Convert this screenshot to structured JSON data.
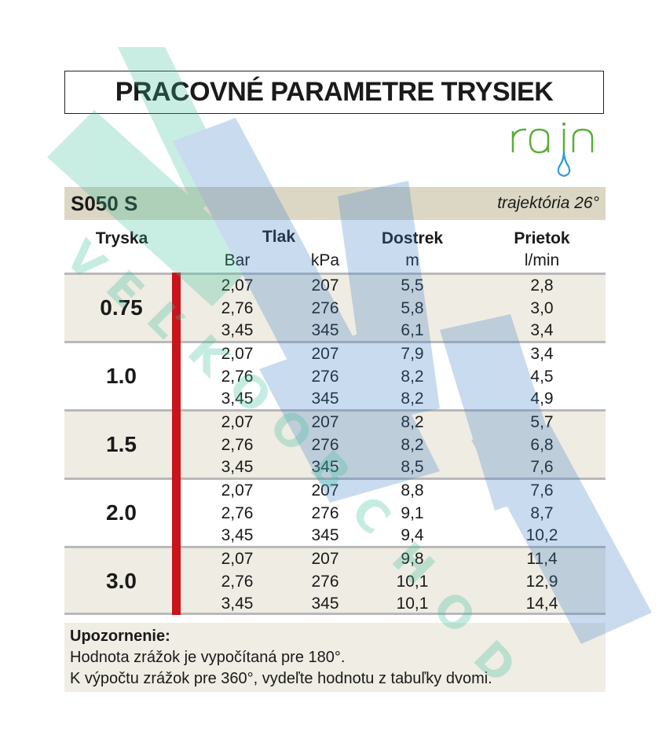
{
  "title": "PRACOVNÉ PARAMETRE TRYSIEK",
  "logo": {
    "text": "rain",
    "green": "#5aae3a",
    "blue": "#2f9ad6"
  },
  "model": {
    "name": "S050 S",
    "trajectory": "trajektória 26°"
  },
  "headers": {
    "nozzle": "Tryska",
    "pressure": "Tlak",
    "pressure_bar": "Bar",
    "pressure_kpa": "kPa",
    "distance": "Dostrek",
    "distance_unit": "m",
    "flow": "Prietok",
    "flow_unit": "l/min"
  },
  "groups": [
    {
      "nozzle": "0.75",
      "rows": [
        {
          "bar": "2,07",
          "kpa": "207",
          "distance": "5,5",
          "flow": "2,8"
        },
        {
          "bar": "2,76",
          "kpa": "276",
          "distance": "5,8",
          "flow": "3,0"
        },
        {
          "bar": "3,45",
          "kpa": "345",
          "distance": "6,1",
          "flow": "3,4"
        }
      ]
    },
    {
      "nozzle": "1.0",
      "rows": [
        {
          "bar": "2,07",
          "kpa": "207",
          "distance": "7,9",
          "flow": "3,4"
        },
        {
          "bar": "2,76",
          "kpa": "276",
          "distance": "8,2",
          "flow": "4,5"
        },
        {
          "bar": "3,45",
          "kpa": "345",
          "distance": "8,2",
          "flow": "4,9"
        }
      ]
    },
    {
      "nozzle": "1.5",
      "rows": [
        {
          "bar": "2,07",
          "kpa": "207",
          "distance": "8,2",
          "flow": "5,7"
        },
        {
          "bar": "2,76",
          "kpa": "276",
          "distance": "8,2",
          "flow": "6,8"
        },
        {
          "bar": "3,45",
          "kpa": "345",
          "distance": "8,5",
          "flow": "7,6"
        }
      ]
    },
    {
      "nozzle": "2.0",
      "rows": [
        {
          "bar": "2,07",
          "kpa": "207",
          "distance": "8,8",
          "flow": "7,6"
        },
        {
          "bar": "2,76",
          "kpa": "276",
          "distance": "9,1",
          "flow": "8,7"
        },
        {
          "bar": "3,45",
          "kpa": "345",
          "distance": "9,4",
          "flow": "10,2"
        }
      ]
    },
    {
      "nozzle": "3.0",
      "rows": [
        {
          "bar": "2,07",
          "kpa": "207",
          "distance": "9,8",
          "flow": "11,4"
        },
        {
          "bar": "2,76",
          "kpa": "276",
          "distance": "10,1",
          "flow": "12,9"
        },
        {
          "bar": "3,45",
          "kpa": "345",
          "distance": "10,1",
          "flow": "14,4"
        }
      ]
    }
  ],
  "note": {
    "title": "Upozornenie:",
    "line1": "Hodnota zrážok je vypočítaná pre 180°.",
    "line2": "K výpočtu zrážok pre 360°, vydeľte hodnotu z tabuľky dvomi."
  },
  "watermark": {
    "text": "VEĽKOOBCHOD",
    "teal": "#3cbf9a",
    "blue": "#3f7fc4"
  },
  "colors": {
    "accent_red": "#c8141b",
    "band": "#dcd7c4",
    "alt_row": "#efece3"
  }
}
